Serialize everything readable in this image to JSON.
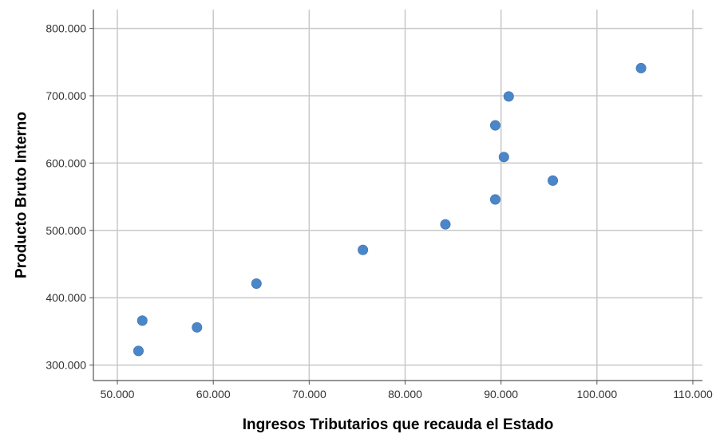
{
  "chart_data": {
    "type": "scatter",
    "title": "",
    "xlabel": "Ingresos Tributarios que recauda el Estado",
    "ylabel": "Producto Bruto Interno",
    "xlim": [
      47500,
      111000
    ],
    "ylim": [
      277000,
      828000
    ],
    "x_ticks": [
      50000,
      60000,
      70000,
      80000,
      90000,
      100000,
      110000
    ],
    "x_tick_labels": [
      "50.000",
      "60.000",
      "70.000",
      "80.000",
      "90.000",
      "100.000",
      "110.000"
    ],
    "y_ticks": [
      300000,
      400000,
      500000,
      600000,
      700000,
      800000
    ],
    "y_tick_labels": [
      "300.000",
      "400.000",
      "500.000",
      "600.000",
      "700.000",
      "800.000"
    ],
    "grid": true,
    "legend": "none",
    "point_color": "#4a86c8",
    "grid_color": "#c8c8c8",
    "axis_color": "#555555",
    "points": [
      {
        "x": 52200,
        "y": 321000
      },
      {
        "x": 52600,
        "y": 366000
      },
      {
        "x": 58300,
        "y": 356000
      },
      {
        "x": 64500,
        "y": 421000
      },
      {
        "x": 75600,
        "y": 471000
      },
      {
        "x": 84200,
        "y": 509000
      },
      {
        "x": 89400,
        "y": 546000
      },
      {
        "x": 89400,
        "y": 656000
      },
      {
        "x": 90300,
        "y": 609000
      },
      {
        "x": 90800,
        "y": 699000
      },
      {
        "x": 95400,
        "y": 574000
      },
      {
        "x": 104600,
        "y": 741000
      }
    ]
  }
}
